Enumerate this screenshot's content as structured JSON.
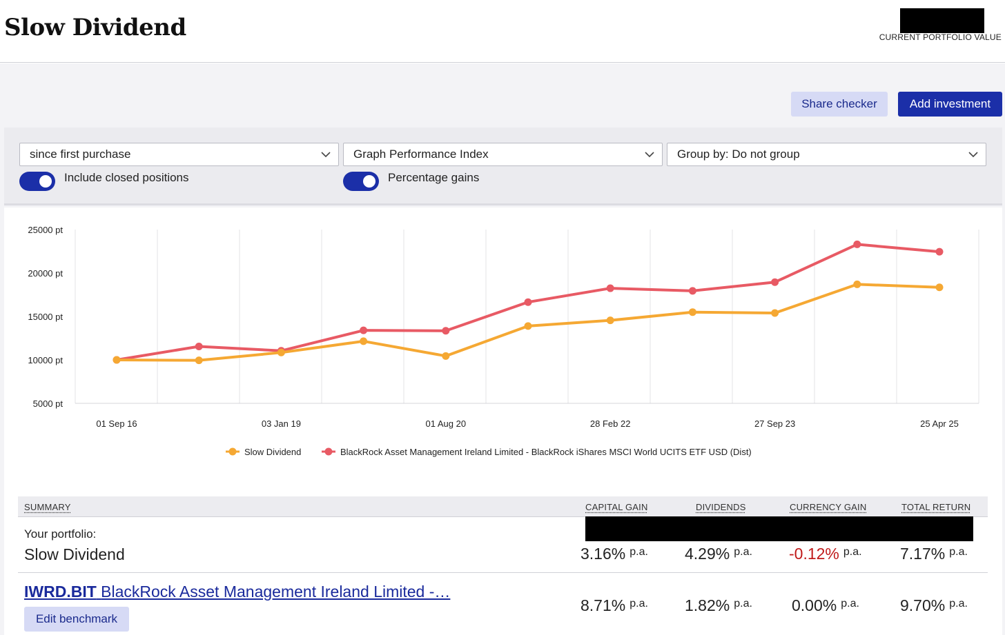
{
  "header": {
    "title": "Slow Dividend",
    "portfolio_value_label": "CURRENT PORTFOLIO VALUE"
  },
  "actions": {
    "share_checker": "Share checker",
    "add_investment": "Add investment"
  },
  "filters": {
    "period": "since first purchase",
    "graph": "Graph Performance Index",
    "group": "Group by: Do not group",
    "include_closed": {
      "label": "Include closed positions",
      "on": true
    },
    "percentage_gains": {
      "label": "Percentage gains",
      "on": true
    }
  },
  "chart_data": {
    "type": "line",
    "y_ticks": [
      "25000 pt",
      "20000 pt",
      "15000 pt",
      "10000 pt",
      "5000 pt"
    ],
    "y_tick_values": [
      25000,
      20000,
      15000,
      10000,
      5000
    ],
    "ylim": [
      5000,
      25000
    ],
    "x_tick_labels": [
      "01 Sep 16",
      "03 Jan 19",
      "01 Aug 20",
      "28 Feb 22",
      "27 Sep 23",
      "25 Apr 25"
    ],
    "x_tick_index": [
      0,
      2,
      4,
      6,
      8,
      10
    ],
    "grid": true,
    "legend_position": "bottom",
    "series": [
      {
        "name": "Slow Dividend",
        "color": "#f5a833",
        "values": [
          10000,
          9950,
          10850,
          12150,
          10450,
          13900,
          14550,
          15500,
          15400,
          18700,
          18350
        ]
      },
      {
        "name": "BlackRock Asset Management Ireland Limited - BlackRock iShares MSCI World UCITS ETF USD (Dist)",
        "color": "#e85a64",
        "values": [
          10000,
          11550,
          11050,
          13400,
          13350,
          16650,
          18250,
          17950,
          18950,
          23300,
          22450
        ]
      }
    ]
  },
  "summary": {
    "headers": {
      "summary": "SUMMARY",
      "capital_gain": "CAPITAL GAIN",
      "dividends": "DIVIDENDS",
      "currency_gain": "CURRENCY GAIN",
      "total_return": "TOTAL RETURN"
    },
    "portfolio": {
      "subtitle": "Your portfolio:",
      "name": "Slow Dividend",
      "capital_gain": "3.16%",
      "dividends": "4.29%",
      "currency_gain": "-0.12%",
      "total_return": "7.17%"
    },
    "benchmark": {
      "ticker": "IWRD.BIT",
      "name": "BlackRock Asset Management Ireland Limited -…",
      "capital_gain": "8.71%",
      "dividends": "1.82%",
      "currency_gain": "0.00%",
      "total_return": "9.70%",
      "edit_label": "Edit benchmark"
    },
    "pa_suffix": "p.a."
  }
}
